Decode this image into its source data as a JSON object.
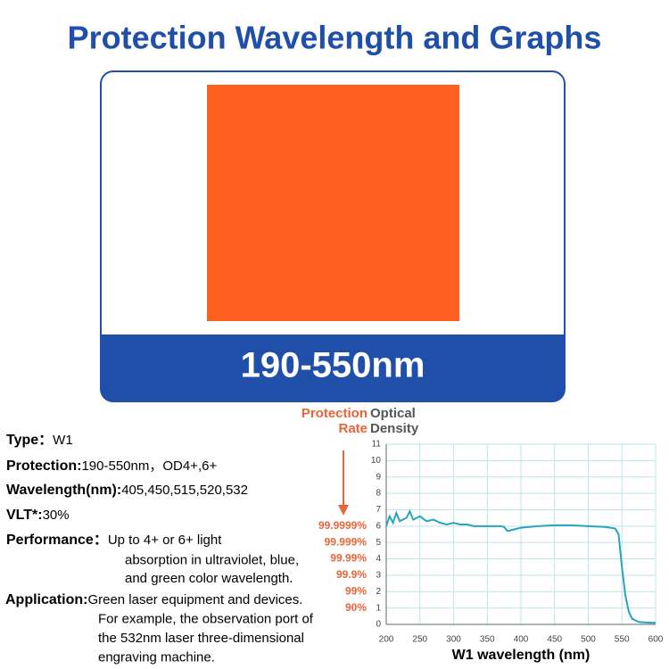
{
  "header": {
    "title": "Protection Wavelength and Graphs"
  },
  "product": {
    "range_label": "190-550nm"
  },
  "specs": [
    {
      "label": "Type：",
      "lines": [
        "W1"
      ]
    },
    {
      "label": "Protection:",
      "lines": [
        "190-550nm，OD4+,6+"
      ]
    },
    {
      "label": "Wavelength(nm):",
      "lines": [
        "405,450,515,520,532"
      ]
    },
    {
      "label": "VLT*:",
      "lines": [
        "30%"
      ]
    },
    {
      "label": "Performance：",
      "lines": [
        "Up to 4+ or 6+ light",
        "absorption in ultraviolet, blue,",
        "and green color wavelength."
      ]
    },
    {
      "label": "Application:",
      "lines": [
        "Green laser equipment and devices.",
        "For example, the observation port of",
        "the 532nm laser three-dimensional",
        "engraving machine."
      ]
    }
  ],
  "chart_data": {
    "type": "line",
    "x_label": "W1 wavelength (nm)",
    "y_label_lines": [
      "Optical",
      "Density"
    ],
    "y2_label_lines": [
      "Protection",
      "Rate"
    ],
    "xlim": [
      200,
      600
    ],
    "xticks": [
      200,
      250,
      300,
      350,
      400,
      450,
      500,
      550,
      600
    ],
    "ylim": [
      0,
      11
    ],
    "yticks": [
      0,
      1,
      2,
      3,
      4,
      5,
      6,
      7,
      8,
      9,
      10,
      11
    ],
    "y2lim": [
      0,
      11
    ],
    "y2ticks": [
      {
        "value": 1,
        "label": "90%"
      },
      {
        "value": 2,
        "label": "99%"
      },
      {
        "value": 3,
        "label": "99.9%"
      },
      {
        "value": 4,
        "label": "99.99%"
      },
      {
        "value": 5,
        "label": "99.999%"
      },
      {
        "value": 6,
        "label": "99.9999%"
      }
    ],
    "grid": true,
    "series": [
      {
        "name": "W1",
        "color": "#2aa3c0",
        "x": [
          200,
          205,
          210,
          215,
          220,
          230,
          235,
          240,
          250,
          260,
          270,
          280,
          290,
          300,
          310,
          320,
          330,
          340,
          350,
          360,
          370,
          375,
          380,
          390,
          400,
          425,
          450,
          475,
          500,
          525,
          540,
          545,
          550,
          555,
          560,
          565,
          575,
          590,
          600
        ],
        "values": [
          6.0,
          6.6,
          6.2,
          6.8,
          6.3,
          6.5,
          6.9,
          6.4,
          6.6,
          6.3,
          6.4,
          6.2,
          6.1,
          6.2,
          6.1,
          6.1,
          6.0,
          6.0,
          6.0,
          6.0,
          6.0,
          5.95,
          5.7,
          5.8,
          5.9,
          6.0,
          6.05,
          6.05,
          6.0,
          5.95,
          5.85,
          5.5,
          3.5,
          1.8,
          0.8,
          0.35,
          0.15,
          0.1,
          0.1
        ]
      }
    ]
  }
}
